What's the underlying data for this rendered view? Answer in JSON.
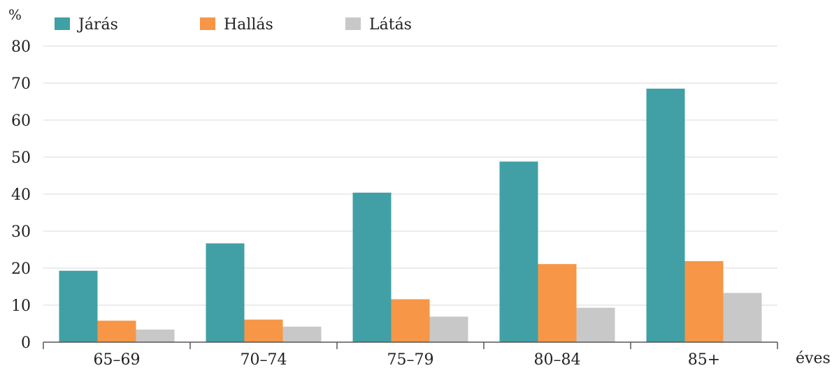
{
  "chart_data": {
    "type": "bar",
    "categories": [
      "65–69",
      "70–74",
      "75–79",
      "80–84",
      "85+"
    ],
    "series": [
      {
        "name": "Járás",
        "color": "#40a0a6",
        "values": [
          19.3,
          26.7,
          40.4,
          48.8,
          68.5
        ]
      },
      {
        "name": "Hallás",
        "color": "#f79646",
        "values": [
          5.8,
          6.1,
          11.6,
          21.1,
          21.9
        ]
      },
      {
        "name": "Látás",
        "color": "#c8c8c8",
        "values": [
          3.4,
          4.2,
          6.9,
          9.3,
          13.3
        ]
      }
    ],
    "ylabel": "%",
    "xlabel": "éves",
    "ylim": [
      0,
      80
    ],
    "yticks": [
      0,
      10,
      20,
      30,
      40,
      50,
      60,
      70,
      80
    ],
    "grid": true,
    "legend": "top-left"
  }
}
